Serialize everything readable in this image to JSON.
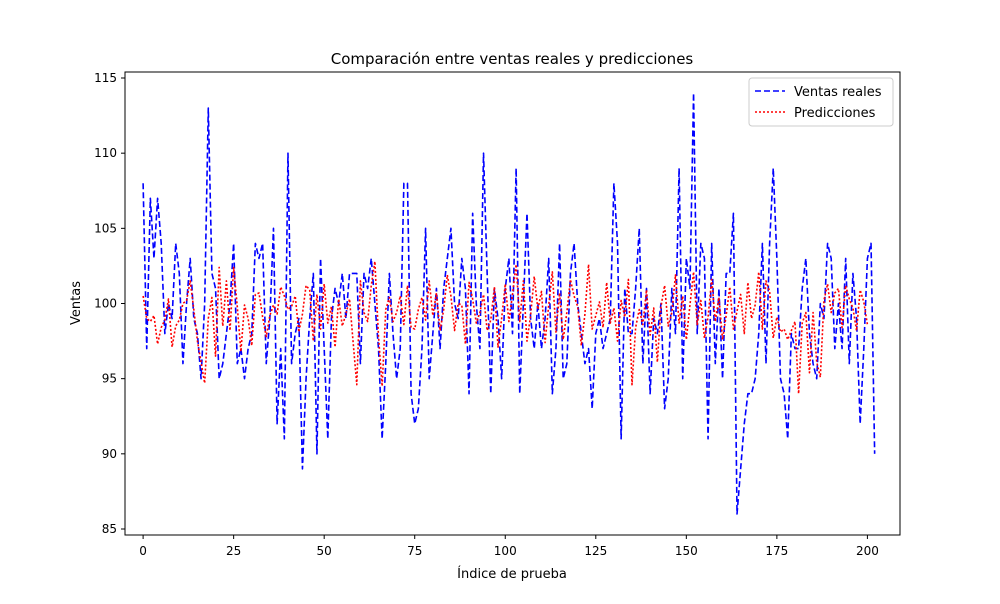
{
  "chart_data": {
    "type": "line",
    "title": "Comparación entre ventas reales y predicciones",
    "xlabel": "Índice de prueba",
    "ylabel": "Ventas",
    "xlim": [
      -5,
      209
    ],
    "ylim": [
      84.6,
      115.4
    ],
    "xticks": [
      0,
      25,
      50,
      75,
      100,
      125,
      150,
      175,
      200
    ],
    "yticks": [
      85,
      90,
      95,
      100,
      105,
      110,
      115
    ],
    "grid": false,
    "legend_position": "top-right",
    "series": [
      {
        "name": "Ventas reales",
        "color": "#0000ff",
        "style": "dashed",
        "x_start": 0,
        "x_step": 1,
        "values": [
          108,
          97,
          107,
          103,
          107,
          104,
          98,
          100,
          99,
          104,
          102,
          96,
          100,
          103,
          99,
          98,
          95,
          100,
          113,
          102,
          101,
          95,
          96,
          98,
          100,
          104,
          96,
          97,
          95,
          97,
          98,
          104,
          103,
          104,
          96,
          99,
          105,
          92,
          97,
          91,
          110,
          96,
          98,
          99,
          89,
          95,
          99,
          102,
          90,
          103,
          97,
          91,
          99,
          101,
          100,
          102,
          99,
          102,
          102,
          102,
          96,
          102,
          101,
          103,
          100,
          97,
          91,
          96,
          102,
          98,
          95,
          97,
          108,
          108,
          94,
          92,
          93,
          97,
          105,
          95,
          98,
          101,
          97,
          101,
          103,
          105,
          100,
          99,
          103,
          101,
          94,
          106,
          100,
          97,
          110,
          102,
          94,
          101,
          99,
          95,
          101,
          103,
          98,
          109,
          94,
          100,
          106,
          99,
          97,
          100,
          97,
          99,
          103,
          94,
          97,
          104,
          95,
          96,
          102,
          104,
          100,
          98,
          96,
          97,
          93,
          98,
          99,
          97,
          98,
          99,
          108,
          104,
          91,
          101,
          98,
          98,
          101,
          105,
          96,
          101,
          94,
          99,
          98,
          100,
          93,
          95,
          101,
          98,
          109,
          95,
          103,
          101,
          114,
          98,
          104,
          103,
          91,
          104,
          96,
          101,
          95,
          102,
          102,
          106,
          86,
          89,
          92,
          94,
          94,
          95,
          98,
          104,
          96,
          104,
          109,
          103,
          95,
          94,
          91,
          98,
          97,
          97,
          101,
          103,
          98,
          96,
          95,
          100,
          99,
          104,
          103,
          97,
          100,
          97,
          103,
          96,
          102,
          99,
          92,
          97,
          103,
          104,
          90
        ]
      },
      {
        "name": "Predicciones",
        "color": "#ff0000",
        "style": "dotted",
        "x_start": 0,
        "x_step": 1,
        "values": [
          100.5,
          99,
          98.8,
          99.2,
          97.3,
          98.4,
          98.9,
          100.3,
          97.1,
          98.5,
          98.9,
          100,
          100.2,
          101.5,
          99.6,
          97.5,
          96.1,
          94.7,
          99,
          100.4,
          96.5,
          102.4,
          98.5,
          101.5,
          98.2,
          102.4,
          99.8,
          96.8,
          99.9,
          99,
          97.2,
          100.6,
          100.7,
          99.1,
          97.8,
          99.2,
          99.9,
          99.3,
          101.1,
          100.5,
          99.6,
          99.8,
          100.5,
          98.1,
          99.3,
          101.2,
          100.9,
          97.5,
          100.6,
          98.3,
          101.3,
          98.7,
          99.8,
          97.1,
          100.3,
          98.5,
          99.3,
          100.3,
          97.4,
          94.6,
          101.5,
          99.4,
          98.8,
          101.2,
          102.8,
          97.8,
          94.5,
          99.6,
          100.4,
          98.8,
          99.4,
          100.5,
          98.6,
          101.2,
          98.4,
          98.3,
          99.6,
          100.4,
          98.9,
          101.5,
          99.2,
          100.7,
          98.2,
          99.6,
          101.9,
          100.5,
          98.2,
          100,
          99.9,
          97.3,
          101.4,
          100.3,
          98.7,
          99.4,
          100.6,
          98.2,
          98.9,
          101.1,
          97.1,
          99,
          101.3,
          98.8,
          100.6,
          102.6,
          98.8,
          101.5,
          97.5,
          99.2,
          101.8,
          99.6,
          100.8,
          97.4,
          99.9,
          102.1,
          98.1,
          100.7,
          97.6,
          99.4,
          101.6,
          100.5,
          99.8,
          97.2,
          99.3,
          102.6,
          98.3,
          99.2,
          100.1,
          98.4,
          101.4,
          98.7,
          99.7,
          97.5,
          100.2,
          99.1,
          101.6,
          94.6,
          98.4,
          99.6,
          98.6,
          100.9,
          97.9,
          99.7,
          96.1,
          99.8,
          101.2,
          98.5,
          99.4,
          101.9,
          98.7,
          100.5,
          97.6,
          99.9,
          102.1,
          98.6,
          100.2,
          97.7,
          99.1,
          101.6,
          98.8,
          100.4,
          97.6,
          99.2,
          101.1,
          98.3,
          99.5,
          100.6,
          98,
          101.4,
          99,
          99.9,
          102.1,
          98.3,
          101.5,
          100.8,
          97.7,
          99.1,
          98.1,
          98.3,
          97.6,
          98.2,
          98.8,
          94,
          98.7,
          99.4,
          95.4,
          99.4,
          96.1,
          95.1,
          100.2,
          101.3,
          99.4,
          100.7,
          101,
          98.4,
          101.2,
          100.3,
          99.7,
          98.2,
          100.9,
          100.1,
          98.6
        ]
      }
    ]
  }
}
